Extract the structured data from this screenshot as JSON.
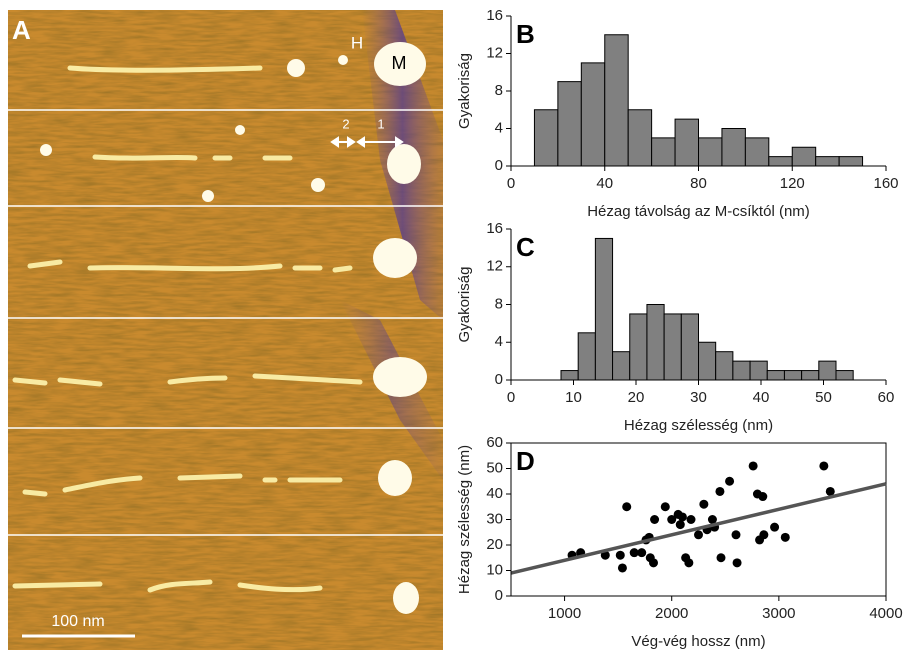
{
  "image_panel": {
    "label": "A",
    "annotations": [
      "H",
      "M",
      "2",
      "1"
    ],
    "scale_bar": "100 nm"
  },
  "chart_data": [
    {
      "type": "histogram",
      "title": "B",
      "x_label": "Hézag távolság az M-csíktól (nm)",
      "y_label": "Gyakoriság",
      "bins": [
        10,
        20,
        30,
        40,
        50,
        60,
        70,
        80,
        90,
        100,
        110,
        120,
        130,
        140,
        150
      ],
      "values": [
        6,
        9,
        11,
        14,
        6,
        3,
        5,
        3,
        4,
        3,
        1,
        2,
        1,
        1
      ],
      "color": "#808080",
      "xlim": [
        0,
        160
      ],
      "ylim": [
        0,
        16
      ],
      "xticks": [
        0,
        40,
        80,
        120,
        160
      ],
      "yticks": [
        0,
        4,
        8,
        12,
        16
      ]
    },
    {
      "type": "histogram",
      "title": "C",
      "x_label": "Hézag szélesség (nm)",
      "y_label": "Gyakoriság",
      "bins": [
        8,
        10.75,
        13.5,
        16.25,
        19,
        21.75,
        24.5,
        27.25,
        30,
        32.75,
        35.5,
        38.25,
        41,
        43.75,
        46.5,
        49.25,
        52,
        54.75
      ],
      "values": [
        1,
        5,
        15,
        3,
        7,
        8,
        7,
        7,
        4,
        3,
        2,
        2,
        1,
        1,
        1,
        2,
        1
      ],
      "color": "#808080",
      "xlim": [
        0,
        60
      ],
      "ylim": [
        0,
        16
      ],
      "xticks": [
        0,
        10,
        20,
        30,
        40,
        50,
        60
      ],
      "yticks": [
        0,
        4,
        8,
        12,
        16
      ]
    },
    {
      "type": "scatter",
      "title": "D",
      "x_label": "Vég-vég hossz (nm)",
      "y_label": "Hézag szélesség (nm)",
      "x": [
        1070,
        1150,
        1380,
        1520,
        1540,
        1580,
        1650,
        1720,
        1760,
        1790,
        1800,
        1830,
        1840,
        1940,
        2000,
        2060,
        2080,
        2100,
        2130,
        2160,
        2180,
        2250,
        2300,
        2330,
        2380,
        2400,
        2450,
        2460,
        2540,
        2600,
        2610,
        2760,
        2800,
        2820,
        2850,
        2860,
        2960,
        3060,
        3420,
        3480
      ],
      "values": [
        16,
        17,
        16,
        16,
        11,
        35,
        17,
        17,
        22,
        23,
        15,
        13,
        30,
        35,
        30,
        32,
        28,
        31,
        15,
        13,
        30,
        24,
        36,
        26,
        30,
        27,
        41,
        15,
        45,
        24,
        13,
        51,
        40,
        22,
        39,
        24,
        27,
        23,
        51,
        41
      ],
      "color": "#000000",
      "fit_line": {
        "x": [
          500,
          4000
        ],
        "y": [
          9,
          44
        ],
        "color": "#555555"
      },
      "xlim": [
        500,
        4000
      ],
      "ylim": [
        0,
        60
      ],
      "xticks": [
        1000,
        2000,
        3000,
        4000
      ],
      "yticks": [
        0,
        10,
        20,
        30,
        40,
        50,
        60
      ]
    }
  ]
}
